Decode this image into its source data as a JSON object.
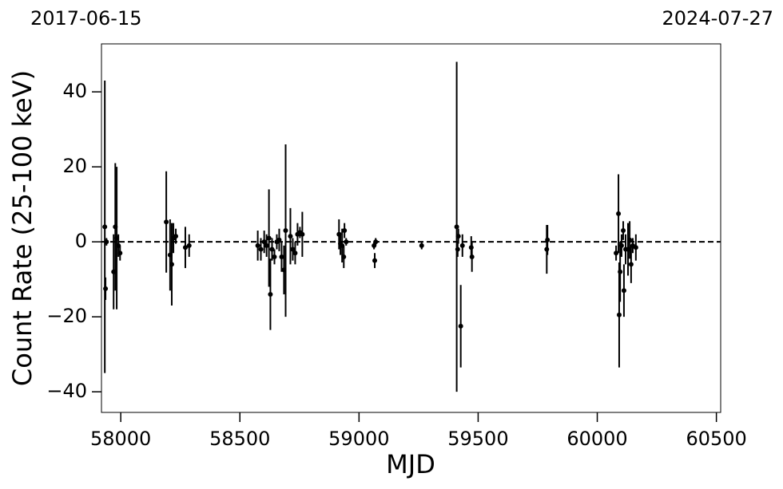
{
  "chart_data": {
    "type": "errorbar-scatter",
    "top_left_label": "2017-06-15",
    "top_right_label": "2024-07-27",
    "x_label": "MJD",
    "y_label": "Count Rate (25-100 keV)",
    "xlim": [
      57919,
      60518
    ],
    "ylim": [
      -45.5,
      52.8
    ],
    "xticks": [
      58000,
      58500,
      59000,
      59500,
      60000,
      60500
    ],
    "yticks": [
      {
        "value": -40,
        "label": "−40"
      },
      {
        "value": -20,
        "label": "−20"
      },
      0,
      20,
      40
    ],
    "hline": 0,
    "color": "#000000",
    "x": [
      57933,
      57936,
      57940,
      57970,
      57977,
      57983,
      57990,
      57997,
      58191,
      58207,
      58214,
      58221,
      58231,
      58271,
      58287,
      58575,
      58588,
      58602,
      58612,
      58622,
      58628,
      58635,
      58645,
      58655,
      58665,
      58675,
      58685,
      58692,
      58712,
      58722,
      58732,
      58742,
      58752,
      58762,
      58916,
      58922,
      58929,
      58936,
      58939,
      58946,
      59063,
      59066,
      59070,
      59263,
      59410,
      59414,
      59417,
      59427,
      59434,
      59471,
      59474,
      59788,
      59791,
      60079,
      60089,
      60092,
      60096,
      60102,
      60109,
      60112,
      60119,
      60129,
      60136,
      60142,
      60149,
      60162
    ],
    "values": [
      4,
      -12.5,
      0,
      -8,
      4,
      1,
      -1,
      -3,
      5.3,
      -3.5,
      -6,
      1,
      1.5,
      -1.5,
      -1,
      -1,
      -2,
      0,
      -1,
      1,
      -14,
      -2,
      -4,
      0,
      0.5,
      -4,
      -7.5,
      3,
      1.5,
      -2,
      -3,
      2,
      2.5,
      2,
      2,
      -0.5,
      -1,
      -4,
      3,
      0,
      -1,
      -5,
      0,
      -1,
      4,
      -2,
      1.5,
      -22.5,
      -1,
      -1.5,
      -4,
      -2,
      0.5,
      -3,
      7.5,
      -19.5,
      -8,
      -1,
      3,
      -13,
      -2,
      -2,
      0.5,
      -6,
      -1,
      -1.5
    ],
    "errors": [
      39,
      3,
      1,
      10,
      17,
      19,
      3,
      2,
      13.5,
      9.5,
      11,
      4,
      2,
      5.5,
      3,
      4,
      3,
      3,
      3,
      13,
      9.5,
      3,
      2,
      2,
      3,
      4,
      6.5,
      23,
      7.5,
      3,
      3,
      3,
      1.5,
      6,
      4,
      3,
      4.5,
      3,
      2,
      1,
      1,
      2,
      1,
      1,
      44,
      2,
      2,
      11,
      3,
      3,
      4,
      6.5,
      4,
      2,
      10.5,
      14,
      8,
      3,
      2.5,
      7,
      4,
      7,
      5,
      5,
      2,
      3.5
    ]
  }
}
